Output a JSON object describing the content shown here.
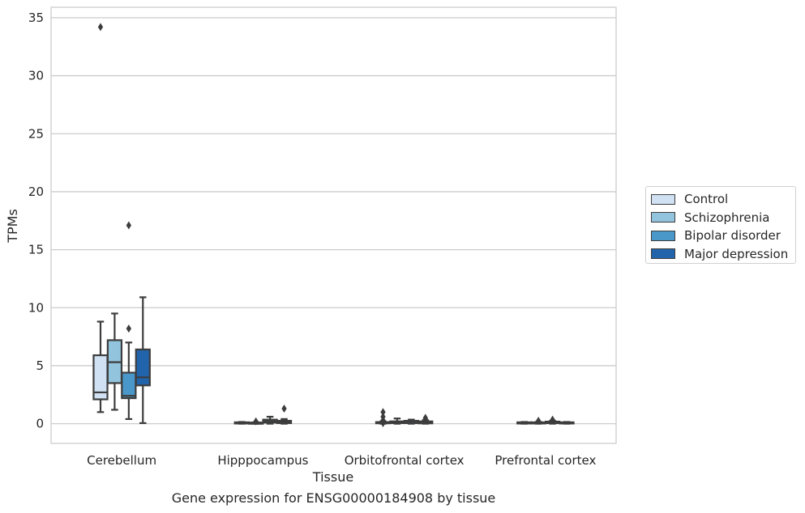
{
  "chart_data": {
    "type": "box",
    "caption": "Gene expression for ENSG00000184908 by tissue",
    "xlabel": "Tissue",
    "ylabel": "TPMs",
    "ylim": [
      -1.7,
      35.9
    ],
    "yticks": [
      0,
      5,
      10,
      15,
      20,
      25,
      30,
      35
    ],
    "grid": "horizontal",
    "legend_position": "right",
    "categories": [
      "Cerebellum",
      "Hipppocampus",
      "Orbitofrontal cortex",
      "Prefrontal cortex"
    ],
    "series": [
      {
        "name": "Control",
        "color": "#cfe1f2",
        "boxes": [
          {
            "whislo": 1.0,
            "q1": 2.1,
            "med": 2.7,
            "q3": 5.9,
            "whishi": 8.8,
            "fliers": [
              34.2
            ]
          },
          {
            "whislo": 0.0,
            "q1": 0.04,
            "med": 0.08,
            "q3": 0.12,
            "whishi": 0.15,
            "fliers": []
          },
          {
            "whislo": 0.0,
            "q1": 0.04,
            "med": 0.08,
            "q3": 0.14,
            "whishi": 0.2,
            "fliers": [
              1.0,
              0.6,
              0.3,
              0.05
            ]
          },
          {
            "whislo": 0.0,
            "q1": 0.04,
            "med": 0.08,
            "q3": 0.12,
            "whishi": 0.15,
            "fliers": []
          }
        ]
      },
      {
        "name": "Schizophrenia",
        "color": "#93c4de",
        "boxes": [
          {
            "whislo": 1.2,
            "q1": 3.5,
            "med": 5.3,
            "q3": 7.2,
            "whishi": 9.5,
            "fliers": []
          },
          {
            "whislo": 0.0,
            "q1": 0.03,
            "med": 0.06,
            "q3": 0.1,
            "whishi": 0.12,
            "fliers": [
              0.2
            ]
          },
          {
            "whislo": 0.0,
            "q1": 0.05,
            "med": 0.1,
            "q3": 0.2,
            "whishi": 0.45,
            "fliers": []
          },
          {
            "whislo": 0.0,
            "q1": 0.04,
            "med": 0.08,
            "q3": 0.12,
            "whishi": 0.15,
            "fliers": [
              0.25
            ]
          }
        ]
      },
      {
        "name": "Bipolar disorder",
        "color": "#4a98c9",
        "boxes": [
          {
            "whislo": 0.4,
            "q1": 2.2,
            "med": 2.4,
            "q3": 4.4,
            "whishi": 7.0,
            "fliers": [
              8.2,
              17.1
            ]
          },
          {
            "whislo": 0.0,
            "q1": 0.1,
            "med": 0.2,
            "q3": 0.35,
            "whishi": 0.6,
            "fliers": []
          },
          {
            "whislo": 0.0,
            "q1": 0.05,
            "med": 0.1,
            "q3": 0.25,
            "whishi": 0.35,
            "fliers": []
          },
          {
            "whislo": 0.0,
            "q1": 0.05,
            "med": 0.1,
            "q3": 0.18,
            "whishi": 0.25,
            "fliers": [
              0.35
            ]
          }
        ]
      },
      {
        "name": "Major depression",
        "color": "#2164ab",
        "boxes": [
          {
            "whislo": 0.05,
            "q1": 3.3,
            "med": 4.0,
            "q3": 6.4,
            "whishi": 10.9,
            "fliers": []
          },
          {
            "whislo": 0.0,
            "q1": 0.05,
            "med": 0.12,
            "q3": 0.25,
            "whishi": 0.4,
            "fliers": [
              1.3
            ]
          },
          {
            "whislo": 0.0,
            "q1": 0.03,
            "med": 0.08,
            "q3": 0.2,
            "whishi": 0.3,
            "fliers": [
              0.5,
              0.4
            ]
          },
          {
            "whislo": 0.0,
            "q1": 0.03,
            "med": 0.08,
            "q3": 0.12,
            "whishi": 0.15,
            "fliers": []
          }
        ]
      }
    ]
  }
}
